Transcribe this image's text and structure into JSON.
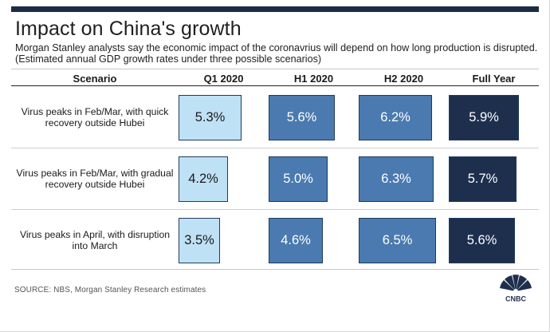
{
  "title": "Impact on China's growth",
  "subtitle": "Morgan Stanley analysts say the economic impact of the coronavrius will depend on how long production is disrupted. (Estimated annual GDP growth rates under three possible scenarios)",
  "source": "SOURCE: NBS, Morgan Stanley Research estimates",
  "logo_text": "CNBC",
  "colors": {
    "Q1 2020": "#bfe1f5",
    "H1 2020": "#4a7ab0",
    "H2 2020": "#4a7ab0",
    "Full Year": "#1e2f4e"
  },
  "chart_data": {
    "type": "table",
    "title": "Impact on China's growth",
    "row_header": "Scenario",
    "columns": [
      "Q1 2020",
      "H1 2020",
      "H2 2020",
      "Full Year"
    ],
    "value_scale": [
      0,
      7.0
    ],
    "rows": [
      {
        "scenario": "Virus peaks in Feb/Mar, with quick recovery outside Hubei",
        "values": [
          5.3,
          5.6,
          6.2,
          5.9
        ]
      },
      {
        "scenario": "Virus peaks in Feb/Mar, with gradual recovery outside Hubei",
        "values": [
          4.2,
          5.0,
          6.3,
          5.7
        ]
      },
      {
        "scenario": "Virus peaks in April, with disruption into March",
        "values": [
          3.5,
          4.6,
          6.5,
          5.6
        ]
      }
    ]
  }
}
